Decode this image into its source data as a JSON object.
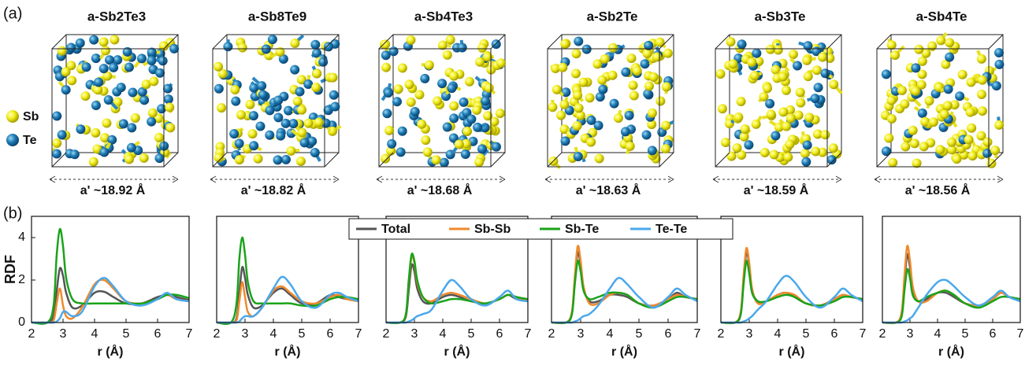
{
  "panel_labels": [
    "(a)",
    "(b)"
  ],
  "atom_legend": [
    "Sb",
    "Te"
  ],
  "structures": [
    {
      "title": "a-Sb2Te3",
      "lattice": "a' ~18.92 Å"
    },
    {
      "title": "a-Sb8Te9",
      "lattice": "a' ~18.82 Å"
    },
    {
      "title": "a-Sb4Te3",
      "lattice": "a' ~18.68 Å"
    },
    {
      "title": "a-Sb2Te",
      "lattice": "a' ~18.63 Å"
    },
    {
      "title": "a-Sb3Te",
      "lattice": "a' ~18.59 Å"
    },
    {
      "title": "a-Sb4Te",
      "lattice": "a' ~18.56 Å"
    }
  ],
  "chart_data": [
    {
      "type": "line",
      "ylabel": "RDF",
      "xlabel": "r (Å)",
      "xlim": [
        2,
        7
      ],
      "xticks": [
        2,
        3,
        4,
        5,
        6,
        7
      ],
      "ylim": [
        0,
        5
      ],
      "yticks": [
        0,
        2,
        4
      ],
      "x": [
        2,
        2.5,
        2.7,
        2.8,
        2.9,
        3.0,
        3.1,
        3.3,
        3.6,
        4.0,
        4.3,
        4.6,
        5.0,
        5.5,
        6.0,
        6.3,
        6.6,
        7.0
      ],
      "series": [
        {
          "name": "Total",
          "color": "#555555",
          "values": [
            0,
            0,
            0.3,
            1.5,
            2.55,
            2.2,
            1.4,
            0.7,
            0.8,
            1.4,
            1.45,
            1.2,
            0.9,
            0.9,
            1.2,
            1.3,
            1.2,
            1.05
          ]
        },
        {
          "name": "Sb-Sb",
          "color": "#f08a2c",
          "values": [
            0,
            0,
            0.1,
            0.9,
            1.6,
            0.8,
            0.3,
            0.2,
            0.7,
            1.8,
            2.0,
            1.6,
            1.0,
            0.9,
            1.1,
            1.3,
            1.1,
            1.0
          ]
        },
        {
          "name": "Sb-Te",
          "color": "#1aa31a",
          "values": [
            0,
            0,
            0.8,
            3.2,
            4.4,
            3.6,
            2.1,
            1.1,
            0.9,
            0.9,
            0.9,
            0.9,
            0.9,
            0.9,
            1.1,
            1.3,
            1.3,
            1.15
          ]
        },
        {
          "name": "Te-Te",
          "color": "#4aa8ec",
          "values": [
            0,
            0,
            0,
            0.05,
            0.2,
            0.5,
            0.5,
            0.3,
            0.5,
            1.7,
            2.1,
            1.7,
            1.0,
            0.8,
            1.1,
            1.4,
            1.1,
            1.0
          ]
        }
      ]
    },
    {
      "type": "line",
      "xlabel": "r (Å)",
      "xlim": [
        2,
        7
      ],
      "xticks": [
        2,
        3,
        4,
        5,
        6,
        7
      ],
      "ylim": [
        0,
        5
      ],
      "x": [
        2,
        2.5,
        2.7,
        2.8,
        2.9,
        3.0,
        3.1,
        3.3,
        3.6,
        4.0,
        4.3,
        4.6,
        5.0,
        5.5,
        6.0,
        6.3,
        6.6,
        7.0
      ],
      "series": [
        {
          "values": [
            0,
            0,
            0.2,
            1.4,
            2.6,
            2.1,
            1.3,
            0.7,
            0.8,
            1.4,
            1.6,
            1.3,
            0.9,
            0.9,
            1.3,
            1.2,
            1.1,
            1.05
          ]
        },
        {
          "values": [
            0,
            0,
            0.1,
            1.0,
            1.9,
            1.2,
            0.5,
            0.3,
            0.7,
            1.5,
            1.7,
            1.4,
            1.0,
            0.9,
            1.2,
            1.3,
            1.1,
            1.0
          ]
        },
        {
          "values": [
            0,
            0,
            0.9,
            3.0,
            4.0,
            3.2,
            1.9,
            1.0,
            0.9,
            0.9,
            0.9,
            0.9,
            0.8,
            0.8,
            1.1,
            1.2,
            1.2,
            1.1
          ]
        },
        {
          "values": [
            0,
            0,
            0,
            0.05,
            0.2,
            0.3,
            0.3,
            0.3,
            0.7,
            1.6,
            2.15,
            1.8,
            1.0,
            0.7,
            1.3,
            1.4,
            1.2,
            1.0
          ]
        }
      ]
    },
    {
      "type": "line",
      "xlabel": "r (Å)",
      "xlim": [
        2,
        7
      ],
      "xticks": [
        2,
        3,
        4,
        5,
        6,
        7
      ],
      "ylim": [
        0,
        5
      ],
      "x": [
        2,
        2.5,
        2.7,
        2.8,
        2.9,
        3.0,
        3.1,
        3.3,
        3.6,
        4.0,
        4.3,
        4.6,
        5.0,
        5.5,
        6.0,
        6.3,
        6.6,
        7.0
      ],
      "series": [
        {
          "values": [
            0,
            0,
            0.3,
            1.5,
            2.7,
            2.4,
            1.6,
            1.0,
            0.9,
            1.2,
            1.3,
            1.2,
            1.0,
            0.9,
            1.1,
            1.3,
            1.1,
            1.0
          ]
        },
        {
          "values": [
            0,
            0,
            0.4,
            1.9,
            3.1,
            2.8,
            1.9,
            1.2,
            1.0,
            1.3,
            1.4,
            1.3,
            1.1,
            0.9,
            1.1,
            1.3,
            1.2,
            1.0
          ]
        },
        {
          "values": [
            0,
            0,
            0.4,
            2.0,
            3.2,
            2.9,
            2.0,
            1.2,
            0.9,
            1.0,
            1.1,
            1.1,
            1.0,
            0.9,
            1.1,
            1.3,
            1.2,
            1.1
          ]
        },
        {
          "values": [
            0,
            0,
            0,
            0.05,
            0.1,
            0.2,
            0.3,
            0.4,
            0.6,
            1.5,
            2.0,
            1.7,
            1.1,
            0.8,
            1.2,
            1.5,
            1.1,
            1.0
          ]
        }
      ]
    },
    {
      "type": "line",
      "xlabel": "r (Å)",
      "xlim": [
        2,
        7
      ],
      "xticks": [
        2,
        3,
        4,
        5,
        6,
        7
      ],
      "ylim": [
        0,
        5
      ],
      "x": [
        2,
        2.5,
        2.7,
        2.8,
        2.9,
        3.0,
        3.1,
        3.3,
        3.6,
        4.0,
        4.3,
        4.6,
        5.0,
        5.5,
        6.0,
        6.3,
        6.6,
        7.0
      ],
      "series": [
        {
          "values": [
            0,
            0,
            0.4,
            2.0,
            3.3,
            2.7,
            1.6,
            1.0,
            1.0,
            1.3,
            1.3,
            1.2,
            0.9,
            0.8,
            1.1,
            1.4,
            1.2,
            1.1
          ]
        },
        {
          "values": [
            0,
            0,
            0.5,
            2.2,
            3.6,
            2.9,
            1.7,
            0.9,
            0.9,
            1.3,
            1.4,
            1.3,
            0.9,
            0.8,
            1.1,
            1.3,
            1.2,
            1.1
          ]
        },
        {
          "values": [
            0,
            0,
            0.4,
            1.8,
            2.9,
            2.4,
            1.5,
            1.1,
            1.2,
            1.4,
            1.4,
            1.3,
            0.9,
            0.7,
            1.0,
            1.2,
            1.2,
            1.1
          ]
        },
        {
          "values": [
            0,
            0,
            0,
            0.05,
            0.1,
            0.2,
            0.3,
            0.4,
            0.8,
            1.6,
            2.1,
            1.8,
            1.2,
            0.7,
            1.2,
            1.6,
            1.3,
            1.0
          ]
        }
      ]
    },
    {
      "type": "line",
      "xlabel": "r (Å)",
      "xlim": [
        2,
        7
      ],
      "xticks": [
        2,
        3,
        4,
        5,
        6,
        7
      ],
      "ylim": [
        0,
        5
      ],
      "x": [
        2,
        2.5,
        2.7,
        2.8,
        2.9,
        3.0,
        3.1,
        3.3,
        3.6,
        4.0,
        4.3,
        4.6,
        5.0,
        5.5,
        6.0,
        6.3,
        6.6,
        7.0
      ],
      "series": [
        {
          "values": [
            0,
            0,
            0.4,
            2.0,
            3.3,
            2.7,
            1.5,
            1.0,
            1.0,
            1.3,
            1.4,
            1.2,
            0.9,
            0.8,
            1.1,
            1.3,
            1.2,
            1.1
          ]
        },
        {
          "values": [
            0,
            0,
            0.5,
            2.2,
            3.5,
            2.8,
            1.6,
            0.9,
            1.0,
            1.3,
            1.4,
            1.3,
            0.9,
            0.8,
            1.1,
            1.3,
            1.2,
            1.1
          ]
        },
        {
          "values": [
            0,
            0,
            0.4,
            1.8,
            2.9,
            2.3,
            1.4,
            1.0,
            1.0,
            1.2,
            1.3,
            1.2,
            0.9,
            0.8,
            1.0,
            1.2,
            1.2,
            1.1
          ]
        },
        {
          "values": [
            0,
            0,
            0,
            0.05,
            0.1,
            0.2,
            0.3,
            0.6,
            1.0,
            1.8,
            2.2,
            1.9,
            1.2,
            0.7,
            1.2,
            1.6,
            1.3,
            1.0
          ]
        }
      ]
    },
    {
      "type": "line",
      "xlabel": "r (Å)",
      "xlim": [
        2,
        7
      ],
      "xticks": [
        2,
        3,
        4,
        5,
        6,
        7
      ],
      "ylim": [
        0,
        5
      ],
      "x": [
        2,
        2.5,
        2.7,
        2.8,
        2.9,
        3.0,
        3.1,
        3.3,
        3.6,
        4.0,
        4.3,
        4.6,
        5.0,
        5.5,
        6.0,
        6.3,
        6.6,
        7.0
      ],
      "series": [
        {
          "values": [
            0,
            0,
            0.4,
            1.9,
            3.2,
            2.6,
            1.5,
            1.0,
            1.1,
            1.4,
            1.4,
            1.2,
            0.9,
            0.8,
            1.1,
            1.4,
            1.2,
            1.1
          ]
        },
        {
          "values": [
            0,
            0,
            0.5,
            2.2,
            3.6,
            2.9,
            1.7,
            1.0,
            1.0,
            1.4,
            1.5,
            1.3,
            0.9,
            0.8,
            1.1,
            1.4,
            1.2,
            1.1
          ]
        },
        {
          "values": [
            0,
            0,
            0.3,
            1.5,
            2.5,
            2.1,
            1.3,
            1.0,
            1.2,
            1.4,
            1.5,
            1.3,
            0.9,
            0.7,
            1.0,
            1.2,
            1.2,
            1.1
          ]
        },
        {
          "values": [
            0,
            0,
            0,
            0.05,
            0.1,
            0.2,
            0.3,
            0.7,
            1.3,
            1.9,
            2.0,
            1.7,
            1.2,
            0.8,
            1.2,
            1.5,
            1.2,
            1.0
          ]
        }
      ]
    }
  ]
}
